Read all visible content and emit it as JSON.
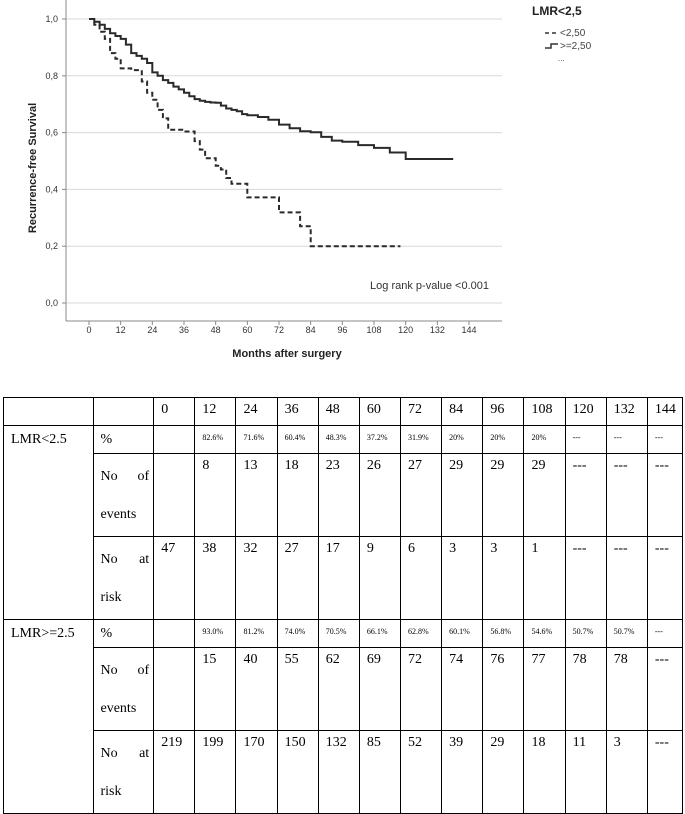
{
  "chart_data": {
    "type": "line",
    "title": "",
    "xlabel": "Months after surgery",
    "ylabel": "Recurrence-free Survival",
    "xlim": [
      -6,
      154
    ],
    "ylim": [
      -0.08,
      1.05
    ],
    "xticks": [
      0,
      12,
      24,
      36,
      48,
      60,
      72,
      84,
      96,
      108,
      120,
      132,
      144
    ],
    "yticks": [
      0.0,
      0.2,
      0.4,
      0.6,
      0.8,
      1.0
    ],
    "ytick_labels": [
      "0,0",
      "0,2",
      "0,4",
      "0,6",
      "0,8",
      "1,0"
    ],
    "legend": {
      "title": "LMR<2,5",
      "position": "top-right",
      "entries": [
        "<2,50",
        ">=2,50",
        "..."
      ]
    },
    "annotation": "Log rank p-value <0.001",
    "series": [
      {
        "name": ">=2,50",
        "style": "solid",
        "points": [
          [
            0,
            1.0
          ],
          [
            2,
            0.99
          ],
          [
            4,
            0.98
          ],
          [
            6,
            0.965
          ],
          [
            8,
            0.95
          ],
          [
            10,
            0.94
          ],
          [
            12,
            0.93
          ],
          [
            14,
            0.91
          ],
          [
            16,
            0.88
          ],
          [
            18,
            0.87
          ],
          [
            20,
            0.86
          ],
          [
            22,
            0.845
          ],
          [
            24,
            0.812
          ],
          [
            26,
            0.8
          ],
          [
            28,
            0.785
          ],
          [
            30,
            0.775
          ],
          [
            32,
            0.762
          ],
          [
            34,
            0.752
          ],
          [
            36,
            0.74
          ],
          [
            38,
            0.728
          ],
          [
            40,
            0.718
          ],
          [
            42,
            0.712
          ],
          [
            44,
            0.708
          ],
          [
            46,
            0.706
          ],
          [
            48,
            0.705
          ],
          [
            50,
            0.695
          ],
          [
            52,
            0.685
          ],
          [
            54,
            0.68
          ],
          [
            56,
            0.675
          ],
          [
            58,
            0.665
          ],
          [
            60,
            0.661
          ],
          [
            64,
            0.655
          ],
          [
            68,
            0.645
          ],
          [
            72,
            0.628
          ],
          [
            76,
            0.615
          ],
          [
            80,
            0.605
          ],
          [
            84,
            0.601
          ],
          [
            88,
            0.585
          ],
          [
            92,
            0.572
          ],
          [
            96,
            0.568
          ],
          [
            102,
            0.556
          ],
          [
            108,
            0.546
          ],
          [
            114,
            0.53
          ],
          [
            120,
            0.507
          ],
          [
            132,
            0.507
          ],
          [
            138,
            0.507
          ]
        ]
      },
      {
        "name": "<2,50",
        "style": "dashed",
        "points": [
          [
            0,
            1.0
          ],
          [
            2,
            0.98
          ],
          [
            4,
            0.955
          ],
          [
            6,
            0.93
          ],
          [
            8,
            0.88
          ],
          [
            10,
            0.86
          ],
          [
            12,
            0.826
          ],
          [
            16,
            0.82
          ],
          [
            20,
            0.78
          ],
          [
            22,
            0.74
          ],
          [
            24,
            0.716
          ],
          [
            26,
            0.68
          ],
          [
            28,
            0.65
          ],
          [
            30,
            0.61
          ],
          [
            36,
            0.604
          ],
          [
            40,
            0.57
          ],
          [
            42,
            0.54
          ],
          [
            44,
            0.51
          ],
          [
            48,
            0.483
          ],
          [
            50,
            0.47
          ],
          [
            52,
            0.44
          ],
          [
            54,
            0.42
          ],
          [
            60,
            0.372
          ],
          [
            72,
            0.319
          ],
          [
            80,
            0.27
          ],
          [
            84,
            0.2
          ],
          [
            96,
            0.2
          ],
          [
            108,
            0.2
          ],
          [
            118,
            0.2
          ]
        ]
      }
    ]
  },
  "table": {
    "header": [
      "",
      "",
      "0",
      "12",
      "24",
      "36",
      "48",
      "60",
      "72",
      "84",
      "96",
      "108",
      "120",
      "132",
      "144"
    ],
    "groups": [
      {
        "name": "LMR<2.5",
        "rows": [
          {
            "label": "%",
            "kind": "pct",
            "values": [
              "",
              "82.6%",
              "71.6%",
              "60.4%",
              "48.3%",
              "37.2%",
              "31.9%",
              "20%",
              "20%",
              "20%",
              "---",
              "---",
              "---"
            ]
          },
          {
            "label": "No of events",
            "kind": "count",
            "values": [
              "",
              "8",
              "13",
              "18",
              "23",
              "26",
              "27",
              "29",
              "29",
              "29",
              "---",
              "---",
              "---"
            ]
          },
          {
            "label": "No at risk",
            "kind": "count",
            "values": [
              "47",
              "38",
              "32",
              "27",
              "17",
              "9",
              "6",
              "3",
              "3",
              "1",
              "---",
              "---",
              "---"
            ]
          }
        ]
      },
      {
        "name": "LMR>=2.5",
        "rows": [
          {
            "label": "%",
            "kind": "pct",
            "values": [
              "",
              "93.0%",
              "81.2%",
              "74.0%",
              "70.5%",
              "66.1%",
              "62.8%",
              "60.1%",
              "56.8%",
              "54.6%",
              "50.7%",
              "50.7%",
              "---"
            ]
          },
          {
            "label": "No of events",
            "kind": "count",
            "values": [
              "",
              "15",
              "40",
              "55",
              "62",
              "69",
              "72",
              "74",
              "76",
              "77",
              "78",
              "78",
              "---"
            ]
          },
          {
            "label": "No at risk",
            "kind": "count",
            "values": [
              "219",
              "199",
              "170",
              "150",
              "132",
              "85",
              "52",
              "39",
              "29",
              "18",
              "11",
              "3",
              "---"
            ]
          }
        ]
      }
    ]
  }
}
